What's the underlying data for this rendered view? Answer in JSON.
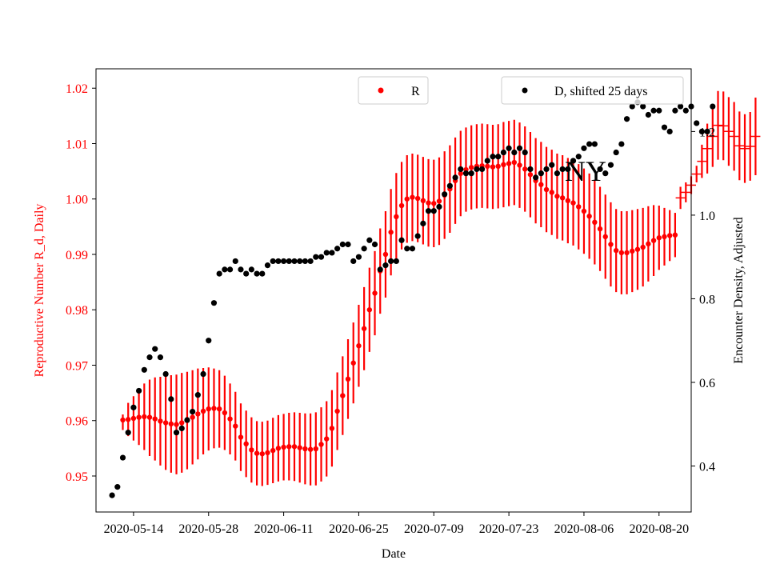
{
  "chart_data": {
    "type": "scatter",
    "annotation": "NY",
    "xlabel": "Date",
    "ylabel_left": "Reproductive Number R_d, Daily",
    "ylabel_right": "Encounter Density, Adjusted",
    "x_tick_labels": [
      "2020-05-14",
      "2020-05-28",
      "2020-06-11",
      "2020-06-25",
      "2020-07-09",
      "2020-07-23",
      "2020-08-06",
      "2020-08-20"
    ],
    "xlim": [
      "2020-05-07",
      "2020-08-26"
    ],
    "ylim_left": [
      0.9435,
      1.0235
    ],
    "ylim_right": [
      0.29,
      1.35
    ],
    "y_left_ticks": [
      "0.95",
      "0.96",
      "0.97",
      "0.98",
      "0.99",
      "1.00",
      "1.01",
      "1.02"
    ],
    "y_right_ticks": [
      "0.4",
      "0.6",
      "0.8",
      "1.0",
      "1.2"
    ],
    "colors": {
      "R": "#ff0000",
      "D": "#000000",
      "left_axis_text": "#ff0000"
    },
    "legend": {
      "R": "R",
      "D": "D, shifted 25 days"
    },
    "series": [
      {
        "name": "R",
        "axis": "left",
        "start_date": "2020-05-12",
        "step_days": 1,
        "values": [
          0.9601,
          0.9602,
          0.9604,
          0.9606,
          0.9607,
          0.9606,
          0.9603,
          0.9599,
          0.9596,
          0.9594,
          0.9593,
          0.9596,
          0.96,
          0.9606,
          0.9612,
          0.9617,
          0.9621,
          0.9622,
          0.9621,
          0.9614,
          0.9603,
          0.959,
          0.957,
          0.9558,
          0.9547,
          0.9541,
          0.954,
          0.9542,
          0.9546,
          0.955,
          0.9552,
          0.9553,
          0.9553,
          0.9551,
          0.9549,
          0.9548,
          0.9549,
          0.9557,
          0.9567,
          0.9586,
          0.9617,
          0.9645,
          0.9675,
          0.9704,
          0.9735,
          0.9766,
          0.98,
          0.983,
          0.987,
          0.99,
          0.994,
          0.9968,
          0.9988,
          1.0,
          1.0003,
          1.0001,
          0.9997,
          0.9993,
          0.9992,
          0.9996,
          1.0007,
          1.0018,
          1.0033,
          1.0046,
          1.0053,
          1.0057,
          1.0059,
          1.006,
          1.0059,
          1.0058,
          1.0059,
          1.0062,
          1.0064,
          1.0066,
          1.0061,
          1.0054,
          1.0044,
          1.0033,
          1.0026,
          1.0017,
          1.0012,
          1.0005,
          1.0002,
          0.9997,
          0.9993,
          0.9986,
          0.9978,
          0.9969,
          0.9958,
          0.9946,
          0.9932,
          0.9918,
          0.9907,
          0.9903,
          0.9903,
          0.9906,
          0.9909,
          0.9913,
          0.9919,
          0.9925,
          0.993,
          0.9932,
          0.9934,
          0.9935,
          1.0002,
          1.0012,
          1.0025,
          1.0045,
          1.0068,
          1.0091,
          1.0113,
          1.0133,
          1.0132,
          1.0122,
          1.0113,
          1.0096,
          1.0091,
          1.0095,
          1.0113
        ],
        "err_low": [
          0.0018,
          0.003,
          0.004,
          0.005,
          0.006,
          0.007,
          0.0075,
          0.008,
          0.0085,
          0.0088,
          0.009,
          0.009,
          0.0088,
          0.0085,
          0.0082,
          0.0078,
          0.0075,
          0.0072,
          0.007,
          0.0067,
          0.0064,
          0.0062,
          0.0061,
          0.006,
          0.0059,
          0.0058,
          0.0058,
          0.0058,
          0.0059,
          0.006,
          0.006,
          0.0061,
          0.0062,
          0.0063,
          0.0064,
          0.0065,
          0.0066,
          0.0067,
          0.0068,
          0.0069,
          0.007,
          0.0071,
          0.0072,
          0.0073,
          0.0074,
          0.0075,
          0.0076,
          0.0076,
          0.0077,
          0.0078,
          0.0078,
          0.0079,
          0.0079,
          0.0079,
          0.0079,
          0.0079,
          0.0079,
          0.0079,
          0.0079,
          0.0079,
          0.0079,
          0.0079,
          0.0078,
          0.0077,
          0.0076,
          0.0076,
          0.0076,
          0.0076,
          0.0076,
          0.0076,
          0.0076,
          0.0077,
          0.0077,
          0.0077,
          0.0077,
          0.0077,
          0.0077,
          0.0077,
          0.0077,
          0.0077,
          0.0077,
          0.0077,
          0.0077,
          0.0077,
          0.0077,
          0.0077,
          0.0077,
          0.0077,
          0.0076,
          0.0076,
          0.0076,
          0.0076,
          0.0075,
          0.0075,
          0.0075,
          0.0074,
          0.0073,
          0.0071,
          0.0068,
          0.0064,
          0.0058,
          0.0052,
          0.0046,
          0.004,
          0.002,
          0.0018,
          0.0016,
          0.0015,
          0.003,
          0.0045,
          0.0055,
          0.0062,
          0.0062,
          0.0062,
          0.0062,
          0.0062,
          0.0062,
          0.0062,
          0.007
        ],
        "err_high": [
          0.001,
          0.003,
          0.004,
          0.005,
          0.006,
          0.0068,
          0.0075,
          0.008,
          0.0085,
          0.0088,
          0.009,
          0.009,
          0.0088,
          0.0085,
          0.0082,
          0.0078,
          0.0075,
          0.0072,
          0.007,
          0.0067,
          0.0064,
          0.0062,
          0.0061,
          0.006,
          0.0059,
          0.0058,
          0.0058,
          0.0058,
          0.0059,
          0.006,
          0.006,
          0.0061,
          0.0062,
          0.0063,
          0.0064,
          0.0065,
          0.0066,
          0.0067,
          0.0068,
          0.0069,
          0.007,
          0.0071,
          0.0072,
          0.0073,
          0.0074,
          0.0075,
          0.0076,
          0.0076,
          0.0077,
          0.0078,
          0.0078,
          0.0079,
          0.0079,
          0.0079,
          0.0079,
          0.0079,
          0.0079,
          0.0079,
          0.0079,
          0.0079,
          0.0079,
          0.0079,
          0.0078,
          0.0077,
          0.0076,
          0.0076,
          0.0076,
          0.0076,
          0.0076,
          0.0076,
          0.0076,
          0.0077,
          0.0077,
          0.0077,
          0.0077,
          0.0077,
          0.0077,
          0.0077,
          0.0077,
          0.0077,
          0.0077,
          0.0077,
          0.0077,
          0.0077,
          0.0077,
          0.0077,
          0.0077,
          0.0077,
          0.0076,
          0.0076,
          0.0076,
          0.0076,
          0.0075,
          0.0075,
          0.0075,
          0.0074,
          0.0073,
          0.0071,
          0.0068,
          0.0064,
          0.0058,
          0.0052,
          0.0046,
          0.004,
          0.002,
          0.0018,
          0.0016,
          0.0015,
          0.003,
          0.0045,
          0.0055,
          0.0062,
          0.0062,
          0.0062,
          0.0062,
          0.0062,
          0.0062,
          0.0062,
          0.007
        ]
      },
      {
        "name": "D, shifted 25 days",
        "axis": "right",
        "start_date": "2020-05-10",
        "step_days": 1,
        "values": [
          0.33,
          0.35,
          0.42,
          0.48,
          0.54,
          0.58,
          0.63,
          0.66,
          0.68,
          0.66,
          0.62,
          0.56,
          0.48,
          0.49,
          0.51,
          0.53,
          0.57,
          0.62,
          0.7,
          0.79,
          0.86,
          0.87,
          0.87,
          0.89,
          0.87,
          0.86,
          0.87,
          0.86,
          0.86,
          0.88,
          0.89,
          0.89,
          0.89,
          0.89,
          0.89,
          0.89,
          0.89,
          0.89,
          0.9,
          0.9,
          0.91,
          0.91,
          0.92,
          0.93,
          0.93,
          0.89,
          0.9,
          0.92,
          0.94,
          0.93,
          0.87,
          0.88,
          0.89,
          0.89,
          0.94,
          0.92,
          0.92,
          0.95,
          0.98,
          1.01,
          1.01,
          1.02,
          1.05,
          1.07,
          1.09,
          1.11,
          1.1,
          1.1,
          1.11,
          1.11,
          1.13,
          1.14,
          1.14,
          1.15,
          1.16,
          1.15,
          1.16,
          1.15,
          1.11,
          1.09,
          1.1,
          1.11,
          1.12,
          1.1,
          1.11,
          1.11,
          1.13,
          1.14,
          1.16,
          1.17,
          1.17,
          1.11,
          1.1,
          1.12,
          1.15,
          1.17,
          1.23,
          1.26,
          1.27,
          1.26,
          1.24,
          1.25,
          1.25,
          1.21,
          1.2,
          1.25,
          1.26,
          1.25,
          1.26,
          1.22,
          1.2,
          1.2,
          1.26
        ]
      }
    ]
  }
}
